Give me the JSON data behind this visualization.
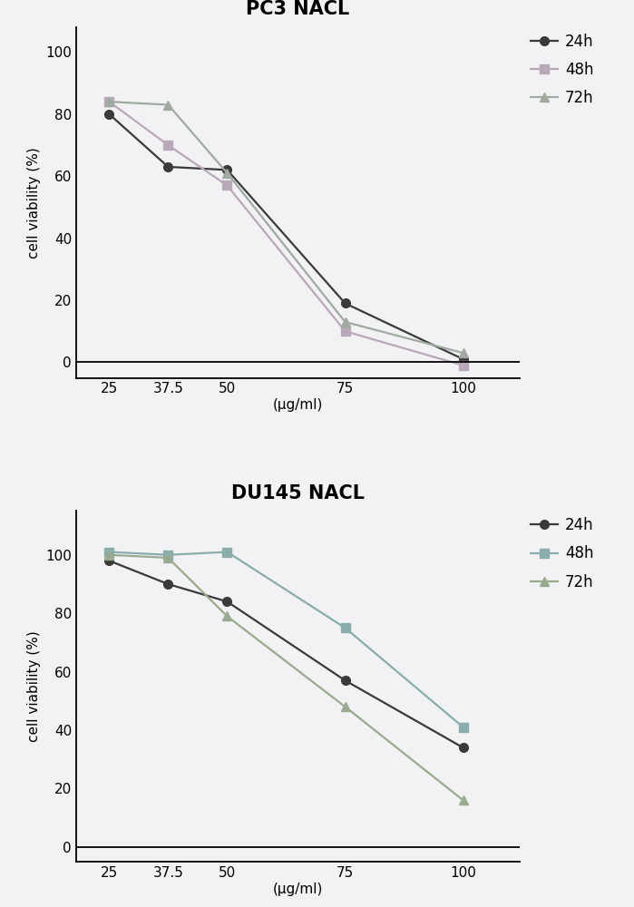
{
  "pc3": {
    "title": "PC3 NACL",
    "x": [
      25,
      37.5,
      50,
      75,
      100
    ],
    "series": [
      {
        "label": "24h",
        "color": "#3a3a3a",
        "marker": "o",
        "marker_color": "#3a3a3a",
        "values": [
          80,
          63,
          62,
          19,
          1
        ]
      },
      {
        "label": "48h",
        "color": "#b8a8b8",
        "marker": "s",
        "marker_color": "#b8a8b8",
        "values": [
          84,
          70,
          57,
          10,
          -1
        ]
      },
      {
        "label": "72h",
        "color": "#a0aaa0",
        "marker": "^",
        "marker_color": "#a0aaa0",
        "values": [
          84,
          83,
          61,
          13,
          3
        ]
      }
    ],
    "ylim": [
      -5,
      108
    ],
    "yticks": [
      0,
      20,
      40,
      60,
      80,
      100
    ]
  },
  "du145": {
    "title": "DU145 NACL",
    "x": [
      25,
      37.5,
      50,
      75,
      100
    ],
    "series": [
      {
        "label": "24h",
        "color": "#3a3a3a",
        "marker": "o",
        "marker_color": "#3a3a3a",
        "values": [
          98,
          90,
          84,
          57,
          34
        ]
      },
      {
        "label": "48h",
        "color": "#8aacaa",
        "marker": "s",
        "marker_color": "#8aacaa",
        "values": [
          101,
          100,
          101,
          75,
          41
        ]
      },
      {
        "label": "72h",
        "color": "#9aaa90",
        "marker": "^",
        "marker_color": "#9aaa90",
        "values": [
          100,
          99,
          79,
          48,
          16
        ]
      }
    ],
    "ylim": [
      -5,
      115
    ],
    "yticks": [
      0,
      20,
      40,
      60,
      80,
      100
    ]
  },
  "xlabel": "(μg/ml)",
  "ylabel": "cell viability (%)",
  "xtick_labels": [
    "25",
    "37.5",
    "50",
    "75",
    "100"
  ],
  "bg_color": "#f2f2f5",
  "linewidth": 1.6,
  "markersize": 7
}
